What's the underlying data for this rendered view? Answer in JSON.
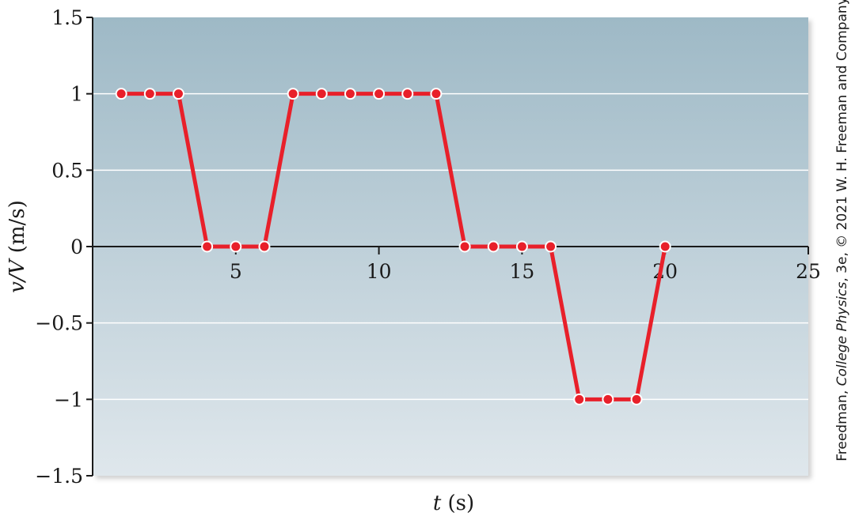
{
  "chart_data": {
    "type": "line",
    "title": "",
    "xlabel_var": "t",
    "xlabel_unit": " (s)",
    "ylabel_var": "v/V",
    "ylabel_unit": " (m/s)",
    "xlim": [
      0,
      25
    ],
    "ylim": [
      -1.5,
      1.5
    ],
    "x_ticks": [
      5,
      10,
      15,
      20,
      25
    ],
    "x_tick_labels": [
      "5",
      "10",
      "15",
      "20",
      "25"
    ],
    "y_ticks": [
      1.5,
      1,
      0.5,
      0,
      -0.5,
      -1,
      -1.5
    ],
    "y_tick_labels": [
      "1.5",
      "1",
      "0.5",
      "0",
      "−0.5",
      "−1",
      "−1.5"
    ],
    "grid": true,
    "line_color": "#e8202a",
    "marker_color": "#e8202a",
    "marker_edge": "#ffffff",
    "series": [
      {
        "x": [
          1,
          2,
          3,
          4,
          5,
          6,
          7,
          8,
          9,
          10,
          11,
          12,
          13,
          14,
          15,
          16,
          17,
          18,
          19,
          20
        ],
        "values": [
          1,
          1,
          1,
          0,
          0,
          0,
          1,
          1,
          1,
          1,
          1,
          1,
          0,
          0,
          0,
          0,
          -1,
          -1,
          -1,
          0
        ]
      }
    ]
  },
  "credit": {
    "prefix": "Freedman, ",
    "book": "College Physics",
    "suffix": ", 3e, © 2021 W. H. Freeman and Company"
  }
}
